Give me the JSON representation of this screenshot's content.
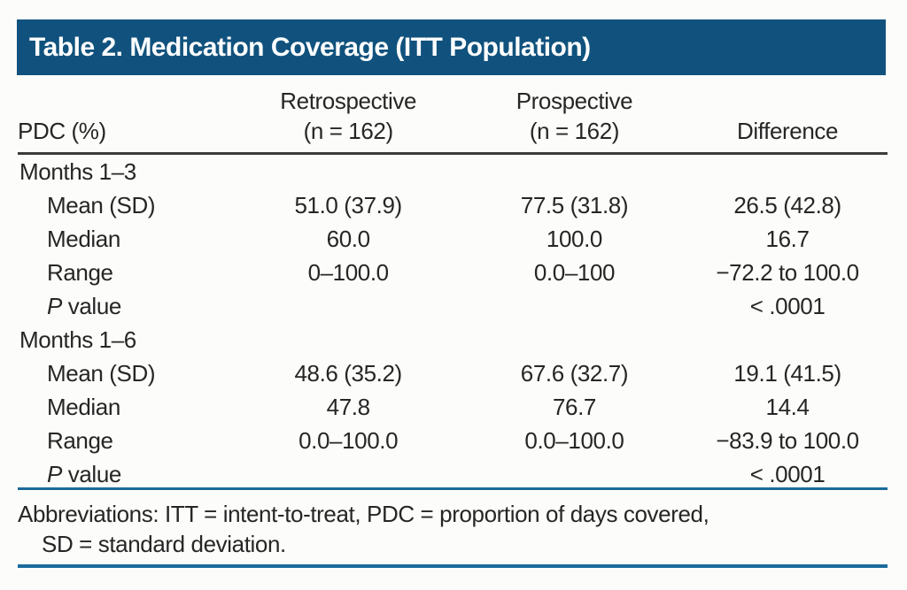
{
  "title": "Table 2. Medication Coverage (ITT Population)",
  "colors": {
    "banner": "#10527D",
    "rule_blue": "#1A6B9A",
    "header_rule": "#3C3C3C",
    "text": "#262626",
    "title_text": "#FFFFFF",
    "background": "#FCFDFA"
  },
  "table": {
    "columns": [
      {
        "line1": "",
        "line2": "PDC (%)"
      },
      {
        "line1": "Retrospective",
        "line2": "(n = 162)"
      },
      {
        "line1": "Prospective",
        "line2": "(n = 162)"
      },
      {
        "line1": "",
        "line2": "Difference"
      }
    ],
    "rows": [
      {
        "label": "Months 1–3",
        "type": "section",
        "cells": [
          "",
          "",
          ""
        ]
      },
      {
        "label": "Mean (SD)",
        "type": "data",
        "cells": [
          "51.0 (37.9)",
          "77.5 (31.8)",
          "26.5 (42.8)"
        ]
      },
      {
        "label": "Median",
        "type": "data",
        "cells": [
          "60.0",
          "100.0",
          "16.7"
        ]
      },
      {
        "label": "Range",
        "type": "data",
        "cells": [
          "0–100.0",
          "0.0–100",
          "−72.2 to 100.0"
        ]
      },
      {
        "label": "P value",
        "type": "pvalue",
        "cells": [
          "",
          "",
          "< .0001"
        ]
      },
      {
        "label": "Months 1–6",
        "type": "section",
        "cells": [
          "",
          "",
          ""
        ]
      },
      {
        "label": "Mean (SD)",
        "type": "data",
        "cells": [
          "48.6 (35.2)",
          "67.6 (32.7)",
          "19.1 (41.5)"
        ]
      },
      {
        "label": "Median",
        "type": "data",
        "cells": [
          "47.8",
          "76.7",
          "14.4"
        ]
      },
      {
        "label": "Range",
        "type": "data",
        "cells": [
          "0.0–100.0",
          "0.0–100.0",
          "−83.9 to 100.0"
        ]
      },
      {
        "label": "P value",
        "type": "pvalue",
        "cells": [
          "",
          "",
          "< .0001"
        ]
      }
    ]
  },
  "footnote": {
    "line1": "Abbreviations: ITT = intent-to-treat, PDC = proportion of days covered,",
    "line2": "SD = standard deviation."
  }
}
